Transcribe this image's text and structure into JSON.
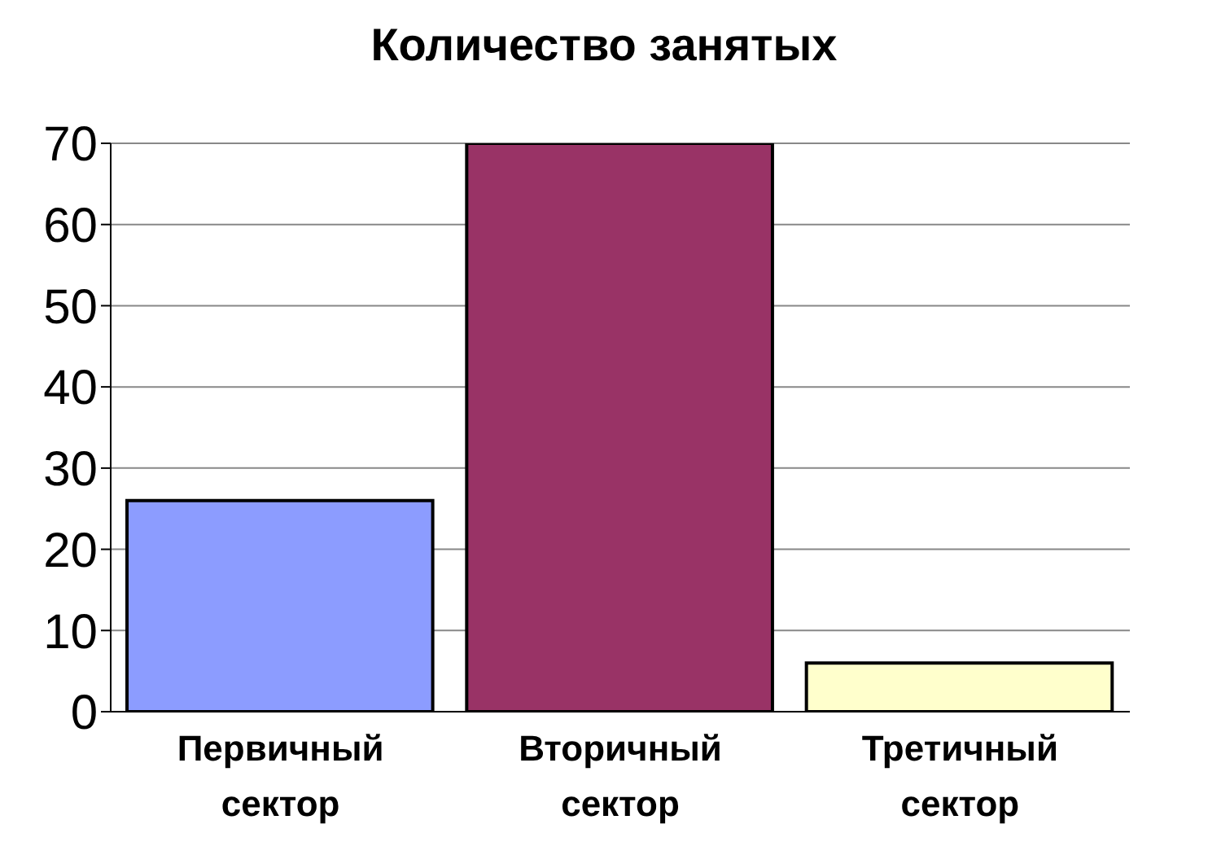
{
  "chart_data": {
    "type": "bar",
    "title": "Количество занятых",
    "categories": [
      "Первичный сектор",
      "Вторичный сектор",
      "Третичный сектор"
    ],
    "values": [
      26,
      70,
      6
    ],
    "colors": [
      "#8c9cff",
      "#993366",
      "#ffffcc"
    ],
    "ylim": [
      0,
      70
    ],
    "yticks": [
      0,
      10,
      20,
      30,
      40,
      50,
      60,
      70
    ],
    "grid": "y"
  }
}
